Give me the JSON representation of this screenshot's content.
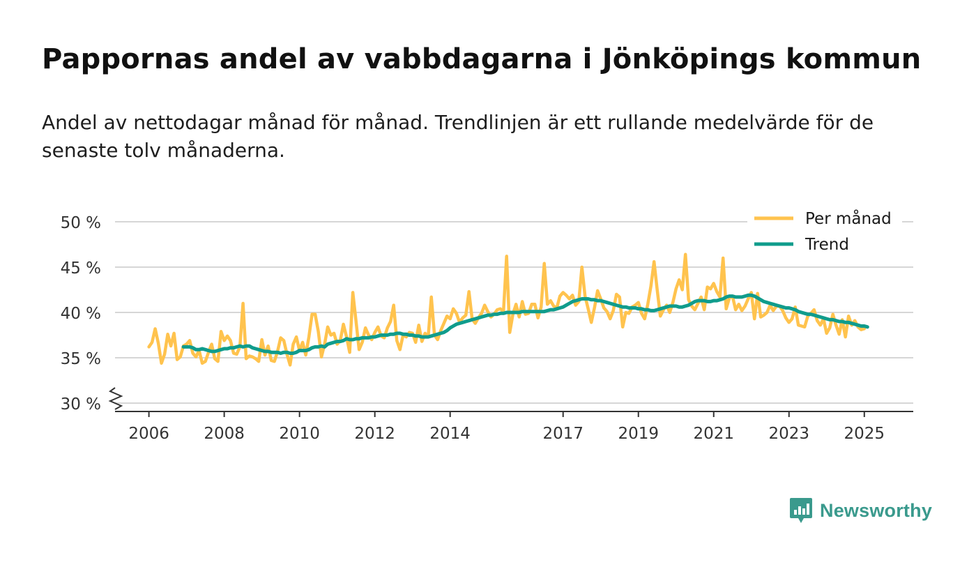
{
  "title": "Pappornas andel av vabbdagarna i Jönköpings kommun",
  "subtitle": "Andel av nettodagar månad för månad. Trendlinjen är ett rullande medelvärde för de senaste tolv månaderna.",
  "brand": {
    "name": "Newsworthy",
    "color": "#3a9a8d"
  },
  "chart_data": {
    "type": "line",
    "y_unit": "%",
    "ylim": [
      30,
      50
    ],
    "y_ticks": [
      30,
      35,
      40,
      45,
      50
    ],
    "y_tick_labels": [
      "30 %",
      "35 %",
      "40 %",
      "45 %",
      "50 %"
    ],
    "xlim": [
      2005.1,
      2026.3
    ],
    "x_ticks": [
      2006,
      2008,
      2010,
      2012,
      2014,
      2017,
      2019,
      2021,
      2023,
      2025
    ],
    "x_tick_labels": [
      "2006",
      "2008",
      "2010",
      "2012",
      "2014",
      "2017",
      "2019",
      "2021",
      "2023",
      "2025"
    ],
    "y_axis_break": true,
    "grid": true,
    "legend_position": "top-right",
    "series": [
      {
        "name": "Per månad",
        "color": "#ffc34e",
        "x_start": 2006.0,
        "x_step": 0.08333,
        "values": [
          36.2,
          36.7,
          38.2,
          36.6,
          34.4,
          35.4,
          37.6,
          36.3,
          37.7,
          34.8,
          35.1,
          36.3,
          36.5,
          36.9,
          35.5,
          35.1,
          35.8,
          34.4,
          34.6,
          35.6,
          36.5,
          34.9,
          34.6,
          37.9,
          36.9,
          37.4,
          36.9,
          35.5,
          35.4,
          36.2,
          41.0,
          34.9,
          35.2,
          35.1,
          34.9,
          34.6,
          37.0,
          35.3,
          36.3,
          34.7,
          34.6,
          35.7,
          37.2,
          36.9,
          35.4,
          34.2,
          36.5,
          37.3,
          35.8,
          36.7,
          35.3,
          37.3,
          39.8,
          39.8,
          37.9,
          35.1,
          36.5,
          38.4,
          37.5,
          37.7,
          36.5,
          36.9,
          38.7,
          37.3,
          35.6,
          42.2,
          39.1,
          35.9,
          36.7,
          38.3,
          37.5,
          37.0,
          37.8,
          38.4,
          37.4,
          37.2,
          38.3,
          39.0,
          40.8,
          36.9,
          35.9,
          37.5,
          37.3,
          37.8,
          37.7,
          36.7,
          38.6,
          36.8,
          37.7,
          37.3,
          41.7,
          37.5,
          37.0,
          38.0,
          38.8,
          39.6,
          39.3,
          40.4,
          39.9,
          38.9,
          39.4,
          39.7,
          42.3,
          39.3,
          38.8,
          39.4,
          39.9,
          40.8,
          40.1,
          39.5,
          39.8,
          40.3,
          40.4,
          40.1,
          46.2,
          37.8,
          39.8,
          40.9,
          39.5,
          41.2,
          39.8,
          39.9,
          40.9,
          40.9,
          39.4,
          40.6,
          45.4,
          40.9,
          41.3,
          40.7,
          40.5,
          41.8,
          42.2,
          41.9,
          41.5,
          41.9,
          40.8,
          41.2,
          45.0,
          41.8,
          40.4,
          38.9,
          40.5,
          42.4,
          41.5,
          40.5,
          40.1,
          39.3,
          40.2,
          42.0,
          41.7,
          38.4,
          40.0,
          39.9,
          40.6,
          40.8,
          41.1,
          39.9,
          39.3,
          40.9,
          42.9,
          45.6,
          42.5,
          39.6,
          40.3,
          40.8,
          40.0,
          41.1,
          42.6,
          43.6,
          42.5,
          46.4,
          41.4,
          40.7,
          40.3,
          41.0,
          41.7,
          40.3,
          42.8,
          42.6,
          43.2,
          42.3,
          41.7,
          46.0,
          40.4,
          41.6,
          41.8,
          40.3,
          40.9,
          40.2,
          40.7,
          41.5,
          42.2,
          39.3,
          42.1,
          39.5,
          39.7,
          40.0,
          40.8,
          40.2,
          40.7,
          40.7,
          40.2,
          39.4,
          38.9,
          39.3,
          40.6,
          38.6,
          38.5,
          38.4,
          39.6,
          39.9,
          40.3,
          39.1,
          38.6,
          39.3,
          37.7,
          38.3,
          39.8,
          38.6,
          37.6,
          39.2,
          37.3,
          39.6,
          38.6,
          39.1,
          38.4,
          38.1,
          38.2
        ]
      },
      {
        "name": "Trend",
        "color": "#109c8c",
        "x_start": 2006.9167,
        "x_step": 0.08333,
        "values": [
          36.2,
          36.2,
          36.2,
          36.1,
          35.9,
          35.9,
          36.0,
          35.9,
          35.8,
          35.7,
          35.7,
          35.8,
          35.9,
          36.0,
          36.0,
          36.1,
          36.1,
          36.2,
          36.3,
          36.2,
          36.3,
          36.3,
          36.1,
          36.0,
          35.9,
          35.8,
          35.7,
          35.7,
          35.6,
          35.6,
          35.6,
          35.5,
          35.6,
          35.6,
          35.5,
          35.5,
          35.6,
          35.8,
          35.8,
          35.8,
          35.9,
          36.1,
          36.2,
          36.2,
          36.3,
          36.2,
          36.5,
          36.6,
          36.7,
          36.8,
          36.8,
          36.9,
          37.1,
          37.0,
          37.0,
          37.1,
          37.1,
          37.2,
          37.2,
          37.2,
          37.3,
          37.3,
          37.4,
          37.5,
          37.5,
          37.5,
          37.6,
          37.6,
          37.7,
          37.7,
          37.6,
          37.6,
          37.5,
          37.5,
          37.4,
          37.4,
          37.3,
          37.3,
          37.3,
          37.4,
          37.5,
          37.6,
          37.7,
          37.8,
          38.0,
          38.3,
          38.5,
          38.7,
          38.8,
          38.9,
          39.0,
          39.1,
          39.2,
          39.3,
          39.4,
          39.5,
          39.6,
          39.7,
          39.7,
          39.8,
          39.8,
          39.9,
          39.9,
          40.0,
          40.0,
          40.0,
          40.0,
          40.0,
          40.1,
          40.1,
          40.1,
          40.1,
          40.1,
          40.1,
          40.1,
          40.1,
          40.2,
          40.3,
          40.3,
          40.4,
          40.5,
          40.6,
          40.8,
          41.0,
          41.2,
          41.3,
          41.4,
          41.5,
          41.5,
          41.5,
          41.4,
          41.4,
          41.3,
          41.3,
          41.2,
          41.1,
          41.0,
          40.9,
          40.8,
          40.7,
          40.6,
          40.6,
          40.5,
          40.5,
          40.5,
          40.4,
          40.4,
          40.3,
          40.3,
          40.2,
          40.2,
          40.3,
          40.4,
          40.5,
          40.6,
          40.7,
          40.7,
          40.7,
          40.6,
          40.6,
          40.7,
          40.8,
          41.0,
          41.2,
          41.3,
          41.3,
          41.3,
          41.2,
          41.2,
          41.3,
          41.3,
          41.4,
          41.5,
          41.7,
          41.8,
          41.8,
          41.7,
          41.7,
          41.7,
          41.8,
          41.9,
          41.9,
          41.8,
          41.6,
          41.4,
          41.2,
          41.1,
          41.0,
          40.9,
          40.8,
          40.7,
          40.6,
          40.5,
          40.5,
          40.4,
          40.3,
          40.1,
          40.0,
          39.9,
          39.8,
          39.8,
          39.7,
          39.6,
          39.5,
          39.4,
          39.3,
          39.2,
          39.2,
          39.1,
          39.0,
          39.0,
          38.9,
          38.9,
          38.8,
          38.7,
          38.6,
          38.5,
          38.5,
          38.4
        ]
      }
    ]
  }
}
